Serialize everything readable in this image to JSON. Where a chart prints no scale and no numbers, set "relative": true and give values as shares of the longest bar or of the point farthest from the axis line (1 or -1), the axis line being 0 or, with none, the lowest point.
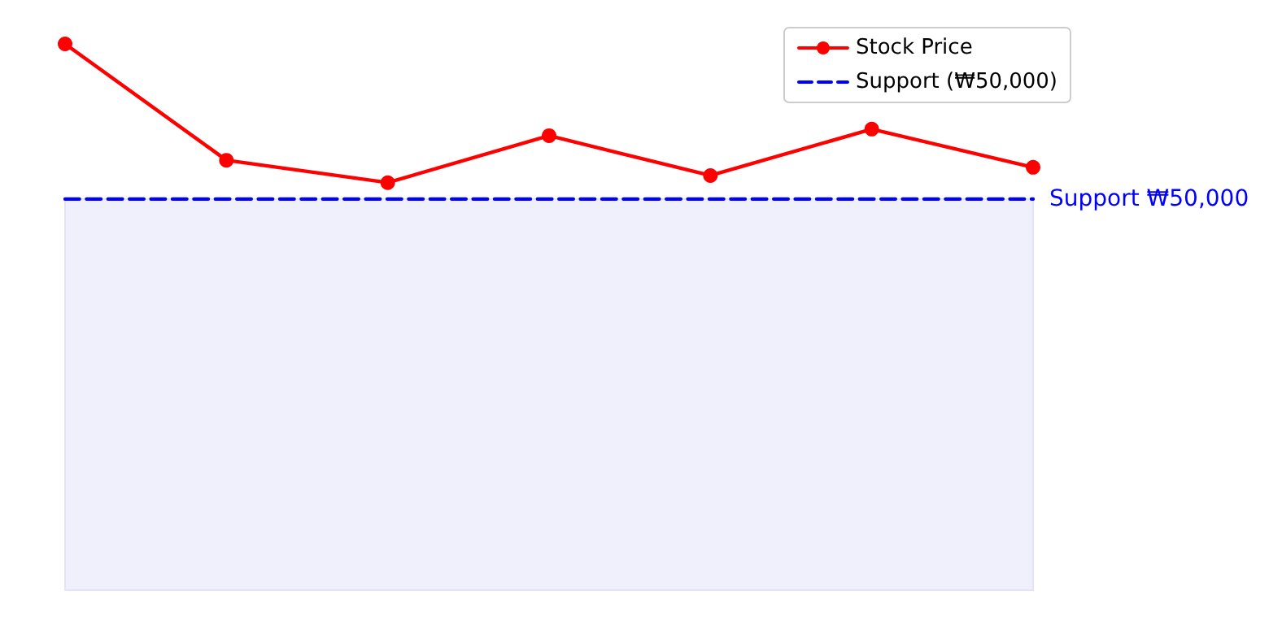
{
  "chart_data": {
    "type": "line",
    "relative": true,
    "categories": [
      null,
      null,
      null,
      null,
      null,
      null,
      null
    ],
    "series": [
      {
        "name": "Stock Price",
        "color": "#ff0000",
        "marker": "circle",
        "line_style": "solid",
        "values": [
          1,
          0.787,
          0.746,
          0.832,
          0.759,
          0.844,
          0.774
        ]
      },
      {
        "name": "Support (₩50,000)",
        "color": "#0000ff",
        "marker": "none",
        "line_style": "dashed",
        "values": [
          0.716,
          0.716,
          0.716,
          0.716,
          0.716,
          0.716,
          0.716
        ]
      }
    ],
    "bands": [
      {
        "axis": "y",
        "from": 0,
        "to": 0.716,
        "color": "#f0f0fc"
      }
    ],
    "annotations": [
      "Support ₩50,000"
    ],
    "legend": "top right",
    "grid": false
  }
}
